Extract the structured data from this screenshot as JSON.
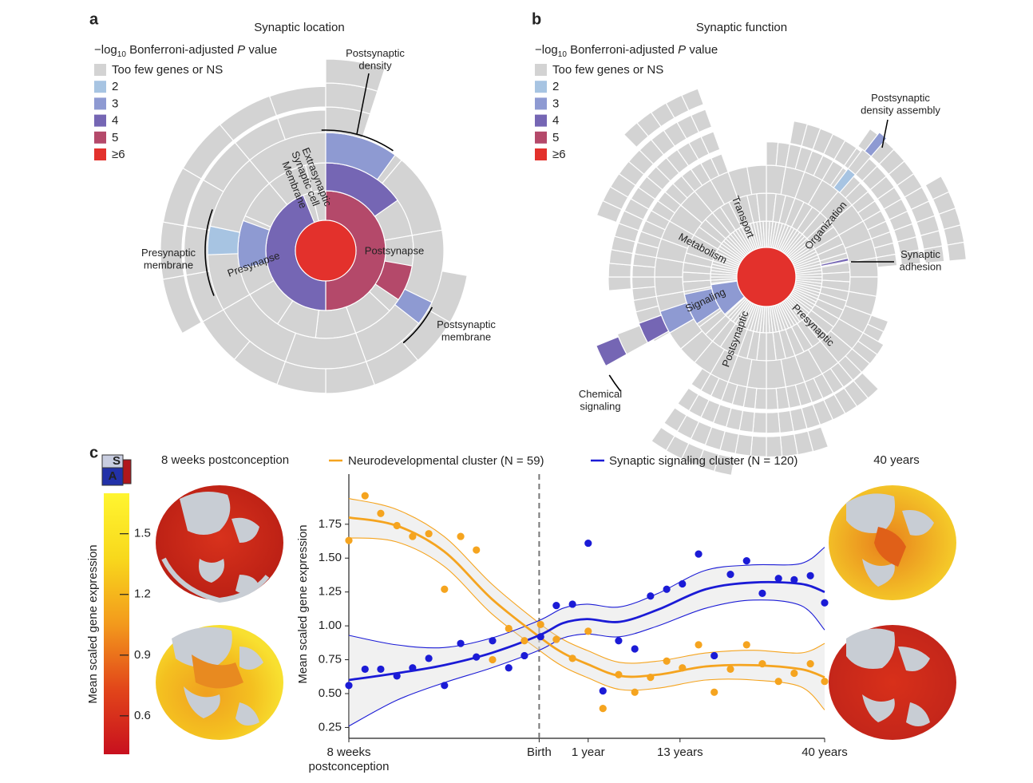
{
  "panel_labels": [
    "a",
    "b",
    "c"
  ],
  "legend": {
    "title_parts": [
      "−log",
      "10",
      " Bonferroni-adjusted ",
      "P",
      " value"
    ],
    "items": [
      {
        "label": "Too few genes or NS",
        "color": "#d3d3d3"
      },
      {
        "label": "2",
        "color": "#a7c4e2"
      },
      {
        "label": "3",
        "color": "#8e9ad2"
      },
      {
        "label": "4",
        "color": "#7566b4"
      },
      {
        "label": "5",
        "color": "#b4496a"
      },
      {
        "label": "≥6",
        "color": "#e3312c"
      }
    ]
  },
  "chart_data": [
    {
      "type": "sunburst",
      "title": "Synaptic location",
      "segment_labels": [
        "Extrasynaptic",
        "Synaptic cell",
        "Membrane",
        "Presynapse",
        "Postsynapse"
      ],
      "annotations": [
        "Postsynaptic\ndensity",
        "Presynaptic\nmembrane",
        "Postsynaptic\nmembrane"
      ]
    },
    {
      "type": "sunburst",
      "title": "Synaptic function",
      "segment_labels": [
        "Transport",
        "Organization",
        "Metabolism",
        "Signaling",
        "Postsynaptic",
        "Presynaptic"
      ],
      "annotations": [
        "Postsynaptic\ndensity assembly",
        "Synaptic\nadhesion",
        "Chemical\nsignaling"
      ]
    },
    {
      "type": "colorbar",
      "label": "Mean scaled gene expression",
      "clim": [
        0.41,
        1.7
      ],
      "ticks": [
        0.6,
        0.9,
        1.2,
        1.5
      ],
      "colors": [
        "#c8101e",
        "#e2461a",
        "#f39a1c",
        "#f8d81c",
        "#fff530"
      ],
      "brain_labels": [
        "8 weeks postconception",
        "40 years"
      ],
      "orientation_cube": [
        "S",
        "A"
      ]
    },
    {
      "type": "scatter",
      "ylabel": "Mean scaled gene expression",
      "x": [
        0,
        3.4,
        6.7,
        10.1,
        13.4,
        16.8,
        20.1,
        23.5,
        26.8,
        30.2,
        33.6,
        36.9,
        40.3,
        43.6,
        47,
        50.3,
        53.4,
        56.7,
        60.1,
        63.4,
        66.8,
        70.1,
        73.5,
        76.8,
        80.2,
        83.6,
        86.9,
        90.3,
        93.6,
        97,
        100
      ],
      "xlim": [
        0,
        100
      ],
      "xticks": [
        {
          "value": 0,
          "label": "8 weeks\npostconception"
        },
        {
          "value": 40,
          "label": "Birth"
        },
        {
          "value": 50.3,
          "label": "1 year"
        },
        {
          "value": 69.6,
          "label": "13 years"
        },
        {
          "value": 100,
          "label": "40 years"
        }
      ],
      "reference_line": {
        "x": 40,
        "style": "dashed"
      },
      "ylim": [
        0.17,
        2.12
      ],
      "yticks": [
        0.25,
        {
          "value": 0.5,
          "label": "0.50"
        },
        0.75,
        {
          "value": 1,
          "label": "1.00"
        },
        1.25,
        {
          "value": 1.5,
          "label": "1.50"
        },
        1.75
      ],
      "fit_x": [
        0,
        10,
        20,
        30,
        40,
        45,
        50,
        57,
        65,
        75,
        85,
        95,
        100
      ],
      "series": [
        {
          "name": "Neurodevelopmental cluster (N = 59)",
          "color": "#f5a41f",
          "values": [
            1.63,
            1.96,
            1.83,
            1.74,
            1.66,
            1.68,
            1.27,
            1.66,
            1.56,
            0.75,
            0.98,
            0.89,
            1.01,
            0.9,
            0.76,
            0.96,
            0.39,
            0.64,
            0.51,
            0.62,
            0.74,
            0.69,
            0.86,
            0.51,
            0.68,
            0.86,
            0.72,
            0.59,
            0.65,
            0.72,
            0.59
          ],
          "fit": [
            1.8,
            1.74,
            1.55,
            1.2,
            0.92,
            0.8,
            0.72,
            0.63,
            0.64,
            0.7,
            0.71,
            0.68,
            0.62
          ],
          "fit_upper": [
            1.94,
            1.86,
            1.66,
            1.31,
            1.02,
            0.9,
            0.82,
            0.73,
            0.74,
            0.8,
            0.82,
            0.8,
            0.87
          ],
          "fit_lower": [
            1.65,
            1.62,
            1.44,
            1.09,
            0.82,
            0.7,
            0.62,
            0.53,
            0.54,
            0.6,
            0.6,
            0.55,
            0.38
          ]
        },
        {
          "name": "Synaptic signaling cluster (N = 120)",
          "color": "#1b1bd6",
          "values": [
            0.56,
            0.68,
            0.68,
            0.63,
            0.69,
            0.76,
            0.56,
            0.87,
            0.77,
            0.89,
            0.69,
            0.78,
            0.92,
            1.15,
            1.16,
            1.61,
            0.52,
            0.89,
            0.83,
            1.22,
            1.27,
            1.31,
            1.53,
            0.78,
            1.38,
            1.48,
            1.24,
            1.35,
            1.34,
            1.37,
            1.17
          ],
          "fit": [
            0.6,
            0.65,
            0.71,
            0.8,
            0.93,
            1.02,
            1.05,
            1.03,
            1.12,
            1.27,
            1.32,
            1.31,
            1.25
          ],
          "fit_upper": [
            0.93,
            0.86,
            0.84,
            0.91,
            1.04,
            1.13,
            1.16,
            1.14,
            1.24,
            1.41,
            1.45,
            1.46,
            1.58
          ],
          "fit_lower": [
            0.26,
            0.45,
            0.58,
            0.69,
            0.82,
            0.91,
            0.94,
            0.92,
            1.0,
            1.13,
            1.19,
            1.15,
            0.97
          ]
        }
      ]
    }
  ]
}
